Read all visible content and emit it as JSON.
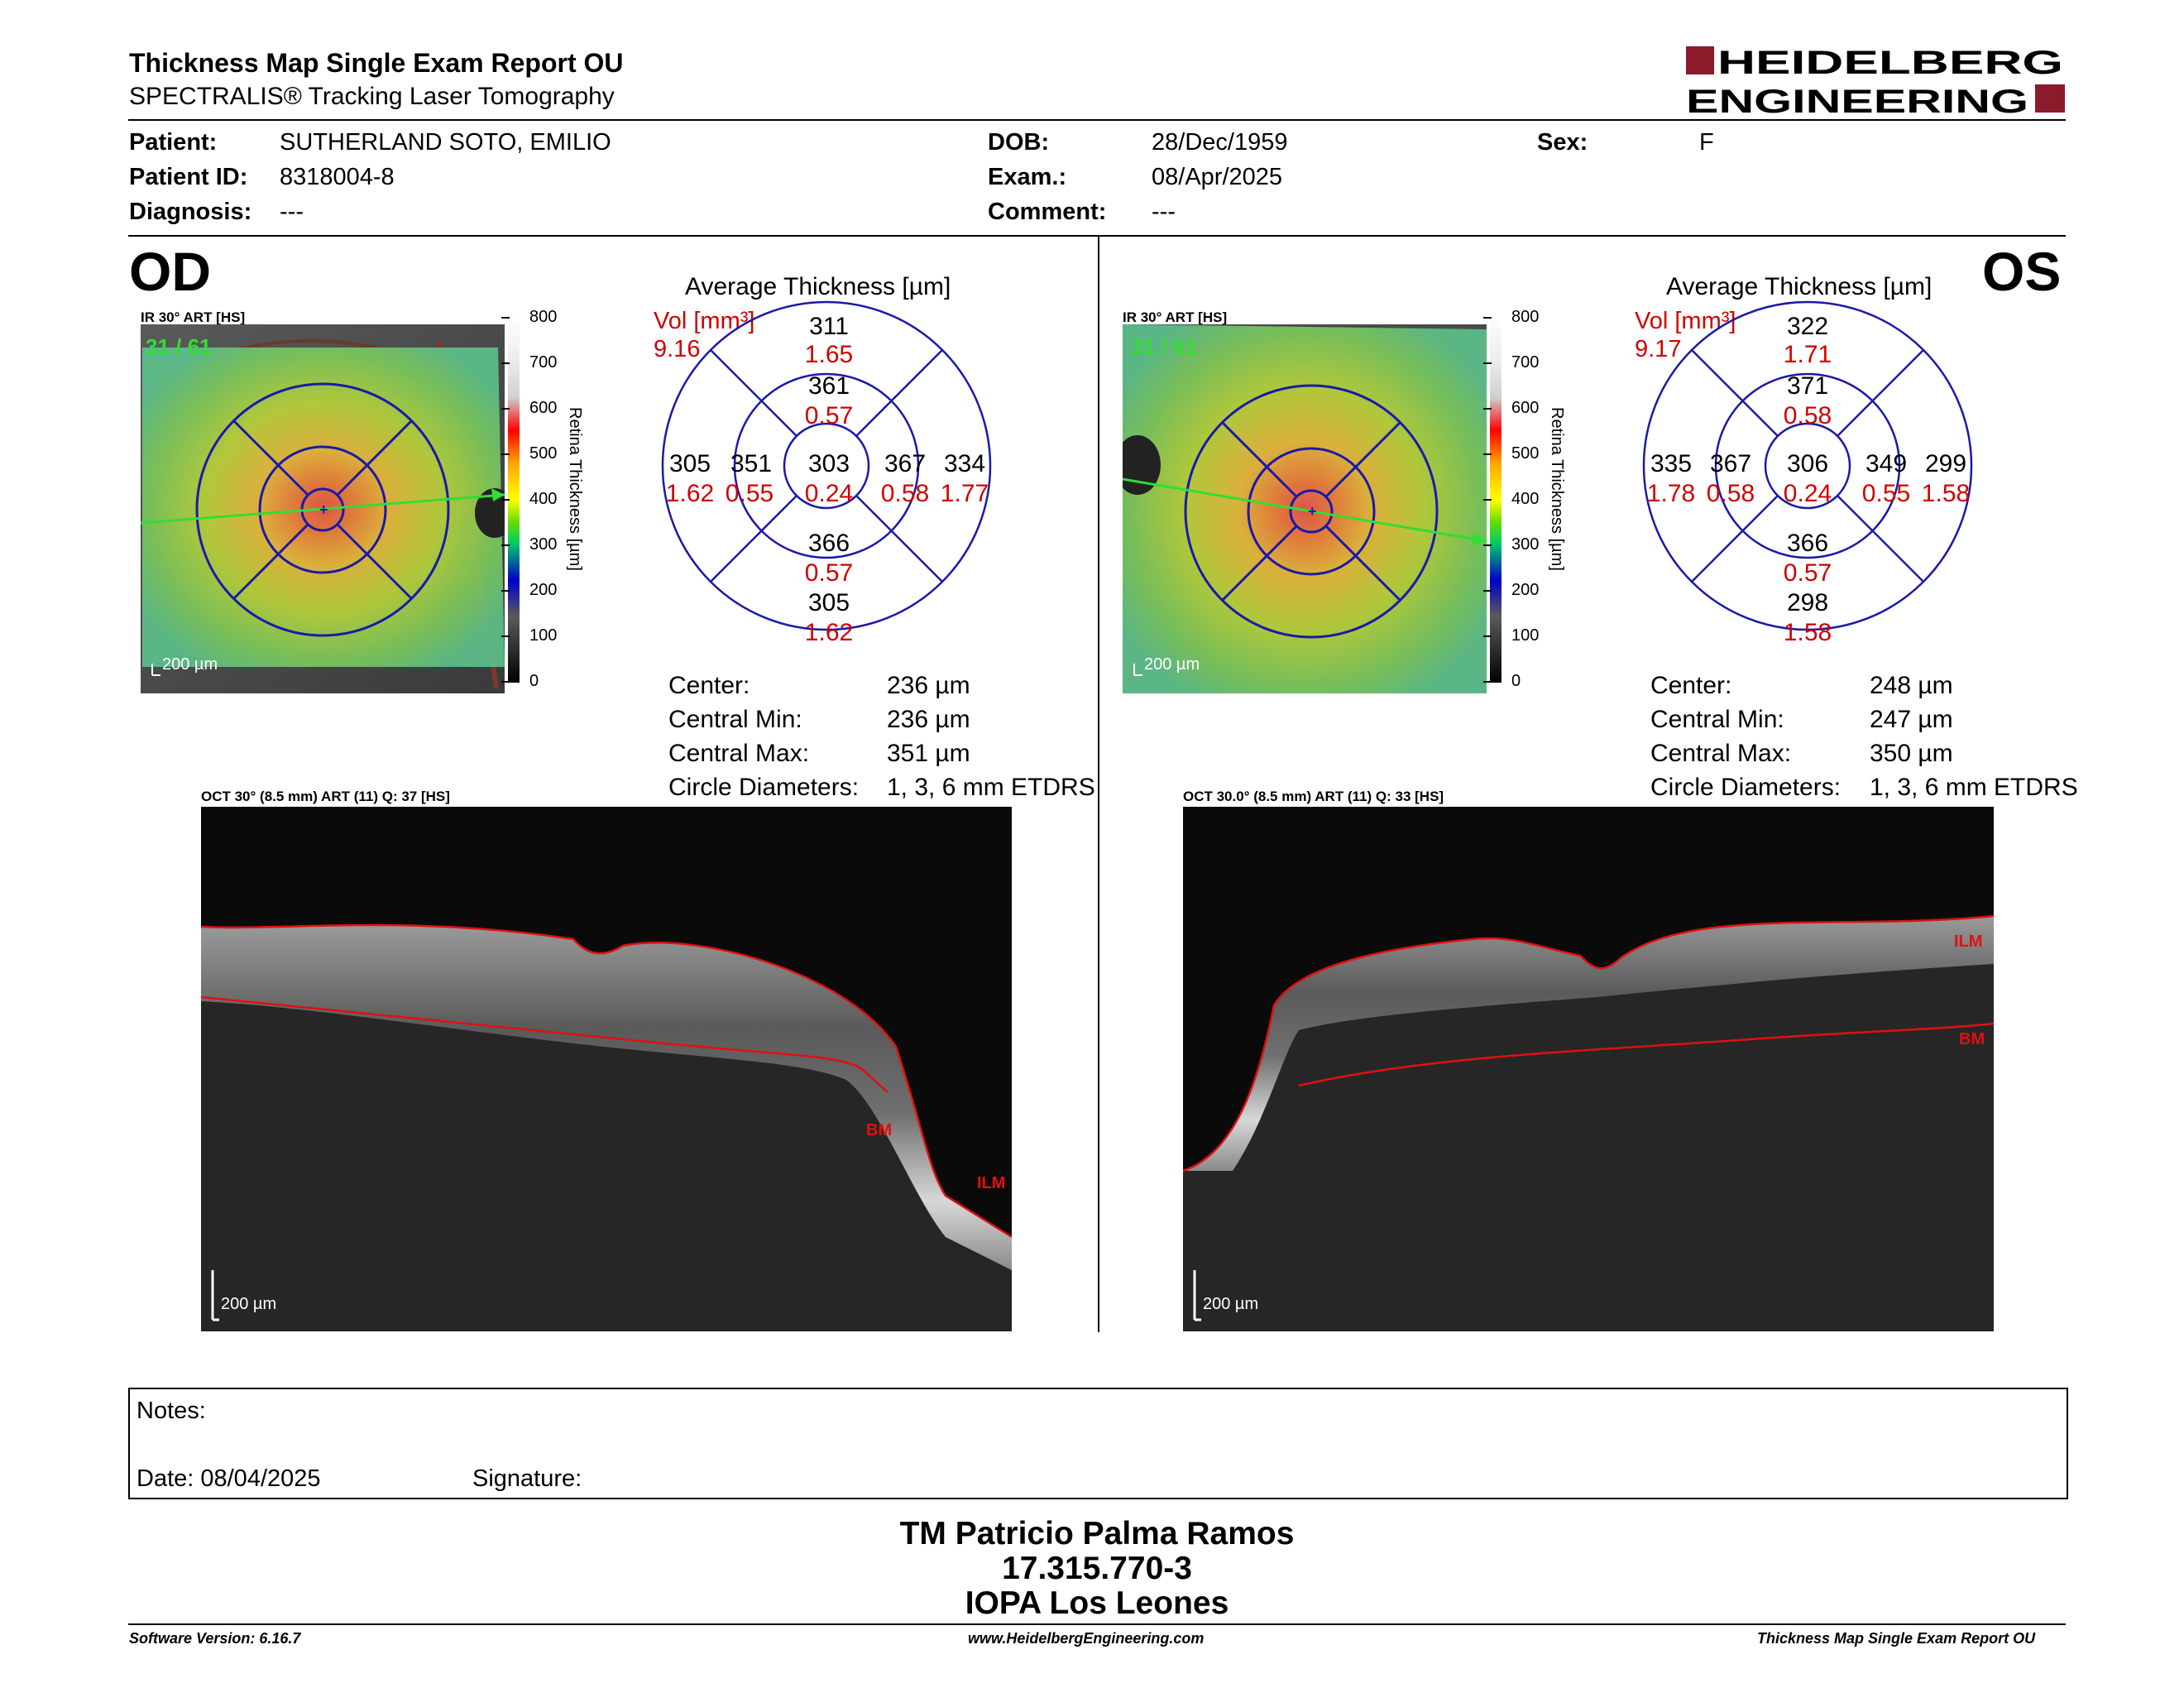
{
  "header": {
    "title": "Thickness Map Single Exam Report OU",
    "subtitle": "SPECTRALIS® Tracking Laser Tomography",
    "logo_line1": "HEIDELBERG",
    "logo_line2": "ENGINEERING",
    "logo_color": "#8b1a2b"
  },
  "patient": {
    "patient_label": "Patient:",
    "patient_value": "SUTHERLAND SOTO, EMILIO",
    "id_label": "Patient ID:",
    "id_value": "8318004-8",
    "diag_label": "Diagnosis:",
    "diag_value": "---",
    "dob_label": "DOB:",
    "dob_value": "28/Dec/1959",
    "exam_label": "Exam.:",
    "exam_value": "08/Apr/2025",
    "comment_label": "Comment:",
    "comment_value": "---",
    "sex_label": "Sex:",
    "sex_value": "F"
  },
  "colorbar": {
    "ticks": [
      "800",
      "700",
      "600",
      "500",
      "400",
      "300",
      "200",
      "100",
      "0"
    ],
    "label": "Retina Thickness [µm]"
  },
  "od": {
    "eye": "OD",
    "ir_label": "IR 30° ART [HS]",
    "frame_count": "31 / 61",
    "scale": "200 µm",
    "avg_title": "Average Thickness [µm]",
    "vol_label": "Vol [mm³]",
    "vol_value": "9.16",
    "sectors": {
      "center": {
        "t": "303",
        "v": "0.24"
      },
      "inner_sup": {
        "t": "361",
        "v": "0.57"
      },
      "inner_inf": {
        "t": "366",
        "v": "0.57"
      },
      "inner_left": {
        "t": "351",
        "v": "0.55"
      },
      "inner_right": {
        "t": "367",
        "v": "0.58"
      },
      "outer_sup": {
        "t": "311",
        "v": "1.65"
      },
      "outer_inf": {
        "t": "305",
        "v": "1.62"
      },
      "outer_left": {
        "t": "305",
        "v": "1.62"
      },
      "outer_right": {
        "t": "334",
        "v": "1.77"
      }
    },
    "stats": {
      "center_label": "Center:",
      "center_value": "236 µm",
      "min_label": "Central Min:",
      "min_value": "236 µm",
      "max_label": "Central Max:",
      "max_value": "351 µm",
      "diam_label": "Circle Diameters:",
      "diam_value": "1, 3, 6 mm ETDRS"
    },
    "oct_label": "OCT 30° (8.5 mm) ART (11) Q: 37 [HS]",
    "oct_scale": "200 µm",
    "ilm": "ILM",
    "bm": "BM"
  },
  "os": {
    "eye": "OS",
    "ir_label": "IR 30° ART [HS]",
    "frame_count": "31 / 61",
    "scale": "200 µm",
    "avg_title": "Average Thickness [µm]",
    "vol_label": "Vol [mm³]",
    "vol_value": "9.17",
    "sectors": {
      "center": {
        "t": "306",
        "v": "0.24"
      },
      "inner_sup": {
        "t": "371",
        "v": "0.58"
      },
      "inner_inf": {
        "t": "366",
        "v": "0.57"
      },
      "inner_left": {
        "t": "367",
        "v": "0.58"
      },
      "inner_right": {
        "t": "349",
        "v": "0.55"
      },
      "outer_sup": {
        "t": "322",
        "v": "1.71"
      },
      "outer_inf": {
        "t": "298",
        "v": "1.58"
      },
      "outer_left": {
        "t": "335",
        "v": "1.78"
      },
      "outer_right": {
        "t": "299",
        "v": "1.58"
      }
    },
    "stats": {
      "center_label": "Center:",
      "center_value": "248 µm",
      "min_label": "Central Min:",
      "min_value": "247 µm",
      "max_label": "Central Max:",
      "max_value": "350 µm",
      "diam_label": "Circle Diameters:",
      "diam_value": "1, 3, 6 mm ETDRS"
    },
    "oct_label": "OCT 30.0° (8.5 mm) ART (11) Q: 33 [HS]",
    "oct_scale": "200 µm",
    "ilm": "ILM",
    "bm": "BM"
  },
  "notes": {
    "notes_label": "Notes:",
    "date_label": "Date: 08/04/2025",
    "signature_label": "Signature:"
  },
  "signature_block": {
    "name": "TM Patricio Palma Ramos",
    "rut": "17.315.770-3",
    "clinic": "IOPA Los Leones"
  },
  "footer": {
    "left": "Software Version: 6.16.7",
    "center": "www.HeidelbergEngineering.com",
    "right": "Thickness Map Single Exam Report OU"
  },
  "colors": {
    "etdrs_blue": "#1a1aa8",
    "value_red": "#d00000",
    "segmentation_red": "#e01010",
    "frame_green": "#33dd33"
  }
}
